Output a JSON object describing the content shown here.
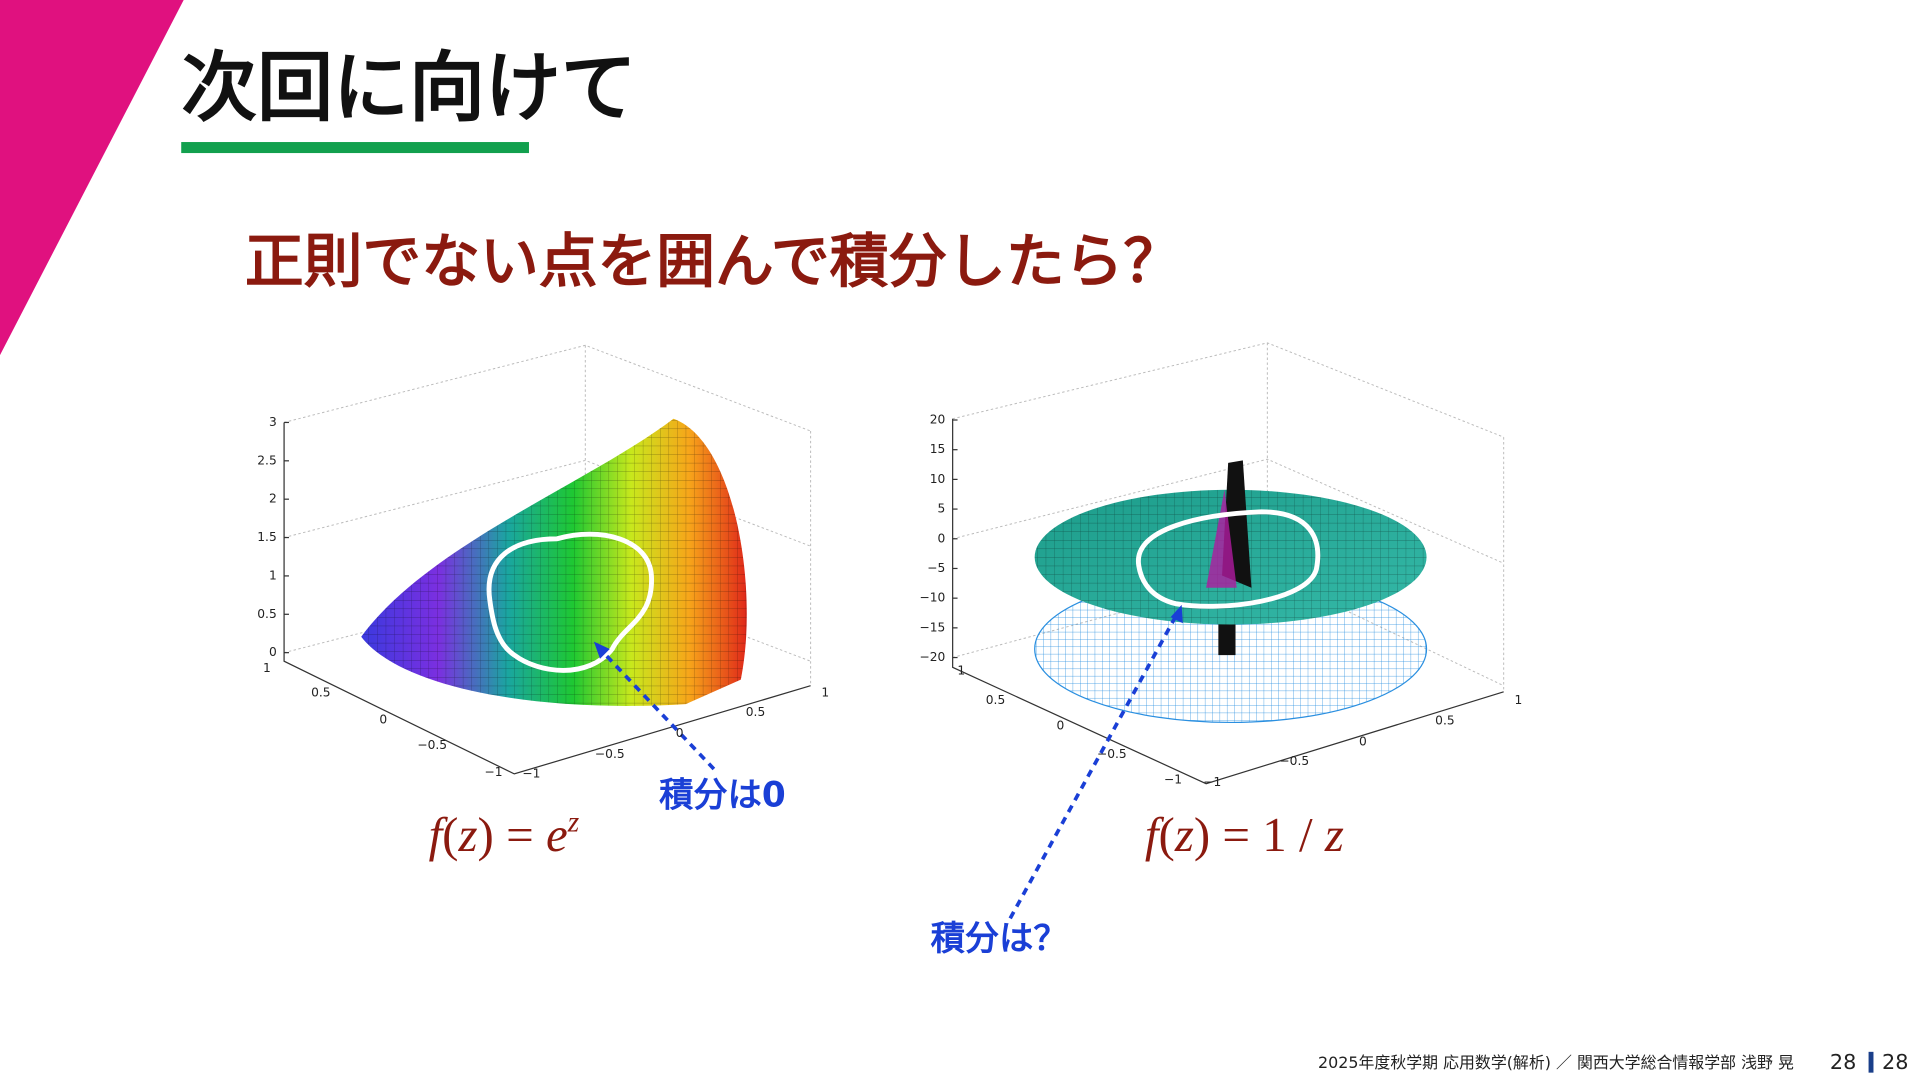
{
  "header": {
    "title": "次回に向けて"
  },
  "subtitle": "正則でない点を囲んで積分したら？",
  "plots": [
    {
      "z_ticks": [
        "3",
        "2.5",
        "2",
        "1.5",
        "1",
        "0.5",
        "0"
      ],
      "left_ticks": [
        "1",
        "0.5",
        "0",
        "−0.5",
        "−1"
      ],
      "right_ticks": [
        "−1",
        "−0.5",
        "0",
        "0.5",
        "1"
      ],
      "formula": [
        {
          "text": "f",
          "italic": true
        },
        {
          "text": "(",
          "italic": false
        },
        {
          "text": "z",
          "italic": true
        },
        {
          "text": ") = ",
          "italic": false
        },
        {
          "text": "e",
          "italic": true
        },
        {
          "text": "z",
          "italic": true,
          "sup": true
        }
      ],
      "annotation": "積分は0"
    },
    {
      "z_ticks": [
        "20",
        "15",
        "10",
        "5",
        "0",
        "−5",
        "−10",
        "−15",
        "−20"
      ],
      "left_ticks": [
        "1",
        "0.5",
        "0",
        "−0.5",
        "−1"
      ],
      "right_ticks": [
        "−1",
        "−0.5",
        "0",
        "0.5",
        "1"
      ],
      "formula": [
        {
          "text": "f",
          "italic": true
        },
        {
          "text": "(",
          "italic": false
        },
        {
          "text": "z",
          "italic": true
        },
        {
          "text": ") = 1 / ",
          "italic": false
        },
        {
          "text": "z",
          "italic": true
        }
      ],
      "annotation": "積分は？"
    }
  ],
  "footer": {
    "course": "2025年度秋学期 応用数学(解析) ／ 関西大学総合情報学部 浅野 晃",
    "page": "28",
    "total": "28"
  }
}
